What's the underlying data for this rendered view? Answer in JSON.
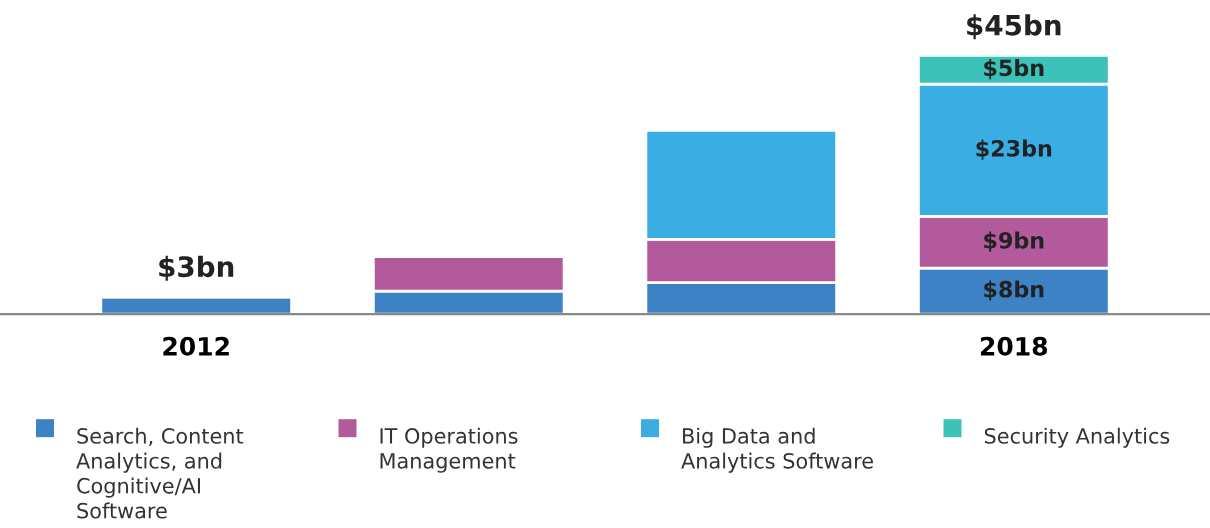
{
  "chart_data": {
    "type": "bar",
    "stacked": true,
    "categories": [
      "2012",
      null,
      null,
      "2018"
    ],
    "series": [
      {
        "name": "Search, Content Analytics, and Cognitive/AI Software",
        "color": "#3d82c4",
        "values": [
          3,
          4,
          5.5,
          8
        ],
        "value_labels": [
          null,
          null,
          null,
          "$8bn"
        ]
      },
      {
        "name": "IT Operations Management",
        "color": "#b25a9c",
        "values": [
          null,
          6,
          7.5,
          9
        ],
        "value_labels": [
          null,
          null,
          null,
          "$9bn"
        ]
      },
      {
        "name": "Big Data and Analytics Software",
        "color": "#3aaee2",
        "values": [
          null,
          null,
          19,
          23
        ],
        "value_labels": [
          null,
          null,
          null,
          "$23bn"
        ]
      },
      {
        "name": "Security Analytics",
        "color": "#3cc2b8",
        "values": [
          null,
          null,
          null,
          5
        ],
        "value_labels": [
          null,
          null,
          null,
          "$5bn"
        ]
      }
    ],
    "totals": [
      "$3bn",
      null,
      null,
      "$45bn"
    ],
    "legend": "bottom",
    "grid": false
  }
}
